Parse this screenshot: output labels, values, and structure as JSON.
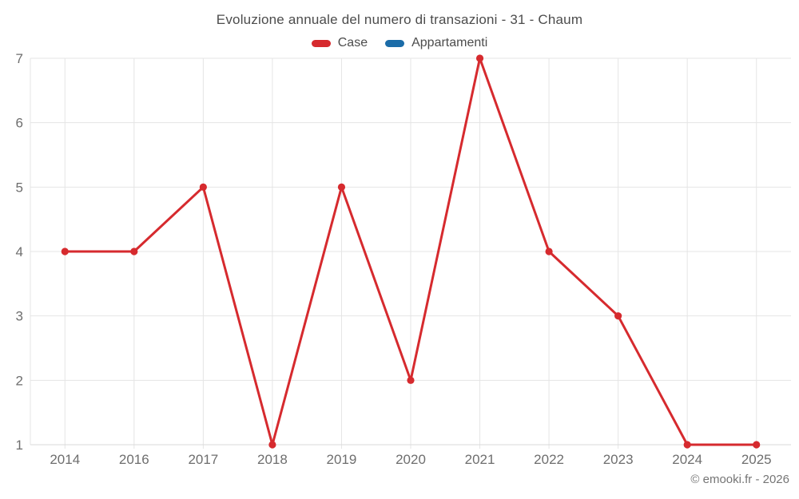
{
  "footer": {
    "credit": "© emooki.fr - 2026"
  },
  "chart_data": {
    "type": "line",
    "title": "Evoluzione annuale del numero di transazioni - 31 - Chaum",
    "categories": [
      "2014",
      "2016",
      "2017",
      "2018",
      "2019",
      "2020",
      "2021",
      "2022",
      "2023",
      "2024",
      "2025"
    ],
    "series": [
      {
        "name": "Case",
        "color": "#d62a2e",
        "values": [
          4,
          4,
          5,
          1,
          5,
          2,
          7,
          4,
          3,
          1,
          1
        ]
      },
      {
        "name": "Appartamenti",
        "color": "#1b6ca8",
        "values": []
      }
    ],
    "xlabel": "",
    "ylabel": "",
    "ylim": [
      1,
      7
    ],
    "y_ticks": [
      1,
      2,
      3,
      4,
      5,
      6,
      7
    ],
    "grid": true,
    "legend_position": "top",
    "theme": {
      "grid_color": "#e5e5e5",
      "axis_color": "#d9d9d9",
      "tick_label_color": "#6e6e6e",
      "title_color": "#4c4c4c"
    }
  }
}
